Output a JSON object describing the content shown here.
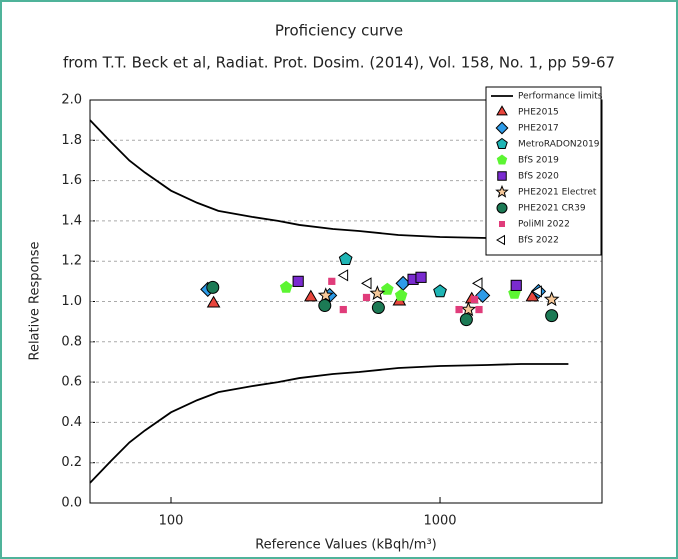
{
  "chart_data": {
    "type": "scatter",
    "title": "Proficiency curve",
    "subtitle": "from T.T. Beck et al, Radiat. Prot. Dosim. (2014), Vol. 158, No. 1, pp 59-67",
    "x_label": "Reference Values (kBqh/m³)",
    "y_label": "Relative Response",
    "x_scale": "log",
    "xlim": [
      50,
      4000
    ],
    "ylim": [
      0,
      2
    ],
    "xticks": [
      100,
      1000
    ],
    "yticks": [
      {
        "value": 0,
        "label": "0.0"
      },
      {
        "value": 0.2,
        "label": "0.2"
      },
      {
        "value": 0.4,
        "label": "0.4"
      },
      {
        "value": 0.6,
        "label": "0.6"
      },
      {
        "value": 0.8,
        "label": "0.8"
      },
      {
        "value": 1,
        "label": "1.0"
      },
      {
        "value": 1.2,
        "label": "1.2"
      },
      {
        "value": 1.4,
        "label": "1.4"
      },
      {
        "value": 1.6,
        "label": "1.6"
      },
      {
        "value": 1.8,
        "label": "1.8"
      },
      {
        "value": 2,
        "label": "2.0"
      }
    ],
    "grid": true,
    "legend": "top-right",
    "series": [
      {
        "name": "Performance limits",
        "marker": "line",
        "color": "#000000",
        "x": [
          50,
          60,
          70,
          80,
          100,
          125,
          150,
          200,
          250,
          300,
          400,
          500,
          700,
          1000,
          1500,
          2000,
          3000
        ],
        "values": [
          1.9,
          1.79,
          1.7,
          1.64,
          1.55,
          1.49,
          1.45,
          1.42,
          1.4,
          1.38,
          1.36,
          1.35,
          1.33,
          1.32,
          1.315,
          1.31,
          1.31
        ]
      },
      {
        "marker": "line",
        "color": "#000000",
        "x": [
          50,
          60,
          70,
          80,
          100,
          125,
          150,
          200,
          250,
          300,
          400,
          500,
          700,
          1000,
          1500,
          2000,
          3000
        ],
        "values": [
          0.1,
          0.21,
          0.3,
          0.36,
          0.45,
          0.51,
          0.55,
          0.58,
          0.6,
          0.62,
          0.64,
          0.65,
          0.67,
          0.68,
          0.685,
          0.69,
          0.69
        ]
      },
      {
        "name": "PHE2015",
        "marker": "triangle",
        "color": "#e8453c",
        "x": [
          144,
          331,
          706,
          1312,
          2203
        ],
        "values": [
          0.99,
          1.02,
          1.0,
          1.01,
          1.02
        ]
      },
      {
        "name": "PHE2017",
        "marker": "diamond",
        "color": "#2d9be8",
        "x": [
          137,
          389,
          729,
          1441,
          2323
        ],
        "values": [
          1.06,
          1.03,
          1.09,
          1.03,
          1.05
        ]
      },
      {
        "name": "MetroRADON2019",
        "marker": "pentagon",
        "color": "#1fb5b5",
        "x": [
          446,
          1000
        ],
        "values": [
          1.21,
          1.05
        ]
      },
      {
        "name": "BfS 2019",
        "marker": "pentagon-filled",
        "color": "#5cf532",
        "x": [
          268,
          637,
          717,
          1891
        ],
        "values": [
          1.07,
          1.06,
          1.03,
          1.04
        ]
      },
      {
        "name": "BfS 2020",
        "marker": "square",
        "color": "#7a2bd0",
        "x": [
          297,
          794,
          850,
          1920
        ],
        "values": [
          1.1,
          1.11,
          1.12,
          1.08
        ]
      },
      {
        "name": "PHE2021 Electret",
        "marker": "star",
        "color": "#f7c99a",
        "x": [
          376,
          585,
          1275,
          2600
        ],
        "values": [
          1.03,
          1.04,
          0.96,
          1.01
        ]
      },
      {
        "name": "PHE2021 CR39",
        "marker": "circle",
        "color": "#1c7a55",
        "x": [
          143,
          373,
          590,
          1253,
          2600
        ],
        "values": [
          1.07,
          0.98,
          0.97,
          0.91,
          0.93
        ]
      },
      {
        "name": "PoliMI 2022",
        "marker": "small-square",
        "color": "#e03c7a",
        "x": [
          396,
          437,
          533,
          1177,
          1344,
          1396
        ],
        "values": [
          1.1,
          0.96,
          1.02,
          0.96,
          1.01,
          0.96
        ]
      },
      {
        "name": "BfS 2022",
        "marker": "left-triangle",
        "color": "#ffffff",
        "x": [
          442,
          540,
          1396,
          2320
        ],
        "values": [
          1.13,
          1.09,
          1.09,
          1.05
        ]
      }
    ]
  }
}
